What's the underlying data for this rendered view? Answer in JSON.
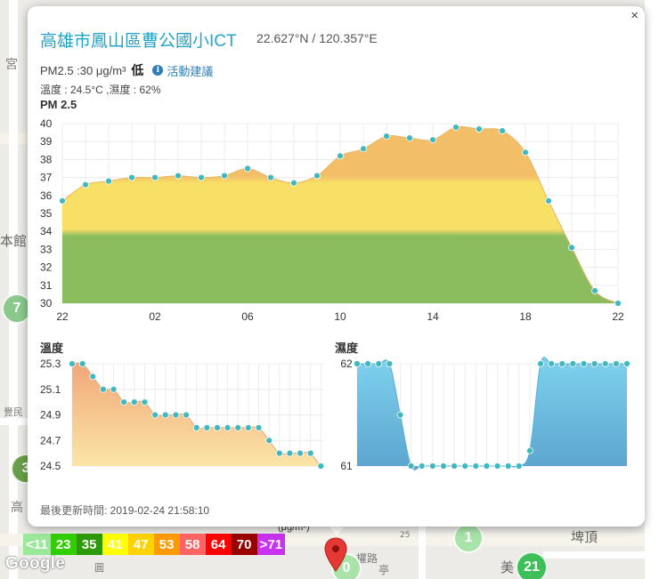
{
  "station": {
    "title": "高雄市鳳山區曹公國小ICT",
    "coords": "22.627°N / 120.357°E",
    "pm_text": "PM2.5 :30 μg/m³",
    "pm_level": "低",
    "advice_link": "活動建議",
    "temp_hum_text": "溫度 : 24.5°C ,濕度 : 62%",
    "updated_label": "最後更新時間: ",
    "updated_time": "2019-02-24 21:58:10",
    "close_label": "×",
    "info_icon_glyph": "i"
  },
  "pm_chart": {
    "title": "PM 2.5",
    "type": "area",
    "x_ticks": [
      "22",
      "02",
      "06",
      "10",
      "14",
      "18",
      "22"
    ],
    "y_ticks": [
      "40",
      "39",
      "38",
      "37",
      "36",
      "35",
      "34",
      "33",
      "32",
      "31",
      "30"
    ],
    "ylim": [
      30,
      40
    ],
    "values": [
      35.7,
      36.6,
      36.8,
      37.0,
      37.0,
      37.1,
      37.0,
      37.1,
      37.5,
      37.0,
      36.7,
      37.1,
      38.2,
      38.6,
      39.3,
      39.2,
      39.1,
      39.8,
      39.7,
      39.6,
      38.4,
      35.7,
      33.1,
      30.7,
      30.0
    ],
    "band_colors": [
      "#8bbd5f",
      "#f8df66",
      "#f2bf68"
    ]
  },
  "temp_chart": {
    "title": "溫度",
    "type": "area",
    "y_ticks": [
      "25.3",
      "25.1",
      "24.9",
      "24.7",
      "24.5"
    ],
    "ylim": [
      24.5,
      25.3
    ],
    "values": [
      25.3,
      25.3,
      25.2,
      25.1,
      25.1,
      25.0,
      25.0,
      25.0,
      24.9,
      24.9,
      24.9,
      24.9,
      24.8,
      24.8,
      24.8,
      24.8,
      24.8,
      24.8,
      24.8,
      24.7,
      24.6,
      24.6,
      24.6,
      24.6,
      24.5,
      24.5
    ]
  },
  "hum_chart": {
    "title": "濕度",
    "type": "area",
    "y_ticks": [
      "62",
      "61"
    ],
    "ylim": [
      61,
      62
    ],
    "values": [
      62,
      62,
      62,
      62,
      61.5,
      61,
      61,
      61,
      61,
      61,
      61,
      61,
      61,
      61,
      61,
      61,
      61.15,
      62,
      62,
      62,
      62,
      62,
      62,
      62,
      62,
      62
    ]
  },
  "legend": {
    "unit": "(μg/m³)",
    "items": [
      {
        "label": "<11",
        "color": "#9be89b"
      },
      {
        "label": "23",
        "color": "#31cf00"
      },
      {
        "label": "35",
        "color": "#2e9a0a"
      },
      {
        "label": "41",
        "color": "#ffff00"
      },
      {
        "label": "47",
        "color": "#ffd200"
      },
      {
        "label": "53",
        "color": "#ff9a00"
      },
      {
        "label": "58",
        "color": "#ff6464"
      },
      {
        "label": "64",
        "color": "#ff0000"
      },
      {
        "label": "70",
        "color": "#990000"
      },
      {
        "label": ">71",
        "color": "#c932f0"
      }
    ]
  },
  "map": {
    "labels": [
      "宮",
      "本",
      "館",
      "覺民",
      "高",
      "埤頂",
      "美",
      "圓",
      "權路",
      "亭",
      "25"
    ],
    "stations": [
      {
        "label": "7",
        "color": "#8bc88c"
      },
      {
        "label": "3",
        "color": "#6a9f4a"
      },
      {
        "label": "1",
        "color": "#a9e3a9"
      },
      {
        "label": "21",
        "color": "#3fbf5a"
      },
      {
        "label": "0",
        "color": "#a9e3a9"
      }
    ],
    "logo": "Google"
  }
}
